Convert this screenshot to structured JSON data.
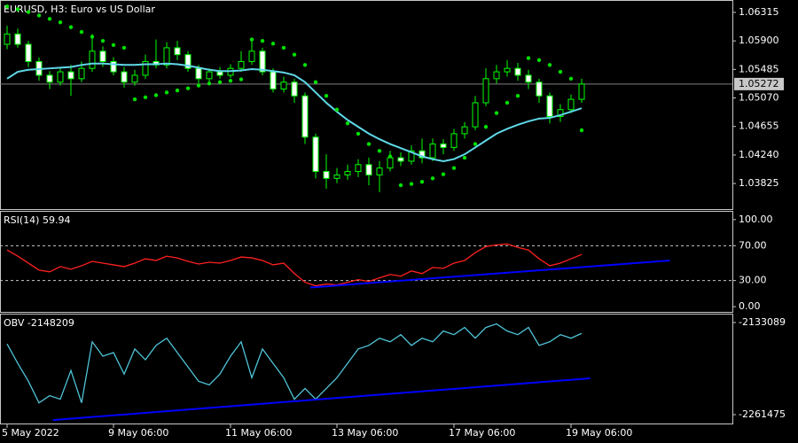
{
  "chart_data": [
    {
      "type": "candlestick",
      "title": "EURUSD, H3:  Euro vs US Dollar",
      "ylim": [
        1.03453,
        1.06482
      ],
      "yticks": [
        1.06315,
        {
          "value": 1.059,
          "label": "1.05900"
        },
        1.05485,
        {
          "value": 1.0507,
          "label": "1.05070"
        },
        1.04655,
        {
          "value": 1.0424,
          "label": "1.04240"
        },
        1.03825
      ],
      "up_color": "#000000",
      "down_color": "#ffffff",
      "wick_color": "#00ff00",
      "last_price_marker": true,
      "open": [
        1.0585,
        1.06,
        1.0585,
        1.056,
        1.054,
        1.053,
        1.0545,
        1.0535,
        1.055,
        1.0575,
        1.056,
        1.0545,
        1.053,
        1.054,
        1.056,
        1.0555,
        1.058,
        1.057,
        1.055,
        1.0535,
        1.0545,
        1.054,
        1.055,
        1.056,
        1.0575,
        1.0545,
        1.052,
        1.053,
        1.051,
        1.045,
        1.04,
        1.039,
        1.0395,
        1.04,
        1.041,
        1.0395,
        1.0405,
        1.042,
        1.0415,
        1.043,
        1.042,
        1.044,
        1.0435,
        1.0455,
        1.0465,
        1.05,
        1.0535,
        1.0545,
        1.055,
        1.054,
        1.053,
        1.051,
        1.048,
        1.049,
        1.0505
      ],
      "high": [
        1.0612,
        1.0608,
        1.059,
        1.0566,
        1.0546,
        1.0552,
        1.0555,
        1.056,
        1.06,
        1.0582,
        1.0566,
        1.0552,
        1.0548,
        1.057,
        1.0592,
        1.0588,
        1.059,
        1.0575,
        1.0555,
        1.055,
        1.0552,
        1.0556,
        1.0575,
        1.059,
        1.058,
        1.055,
        1.0538,
        1.0535,
        1.0515,
        1.0455,
        1.0425,
        1.0405,
        1.041,
        1.0418,
        1.042,
        1.0415,
        1.043,
        1.0428,
        1.0438,
        1.0448,
        1.0448,
        1.0447,
        1.0462,
        1.0472,
        1.051,
        1.055,
        1.0555,
        1.0562,
        1.0558,
        1.0548,
        1.0535,
        1.0515,
        1.0498,
        1.0512,
        1.0535
      ],
      "low": [
        1.0578,
        1.058,
        1.0552,
        1.0532,
        1.052,
        1.0525,
        1.051,
        1.053,
        1.0545,
        1.0552,
        1.054,
        1.0522,
        1.0525,
        1.0535,
        1.055,
        1.055,
        1.0562,
        1.0545,
        1.0528,
        1.053,
        1.0535,
        1.0536,
        1.0545,
        1.0555,
        1.054,
        1.0515,
        1.0515,
        1.05,
        1.044,
        1.039,
        1.0375,
        1.0383,
        1.0388,
        1.0392,
        1.038,
        1.037,
        1.04,
        1.0408,
        1.041,
        1.0412,
        1.0415,
        1.0425,
        1.043,
        1.0448,
        1.046,
        1.0495,
        1.0528,
        1.0538,
        1.0532,
        1.052,
        1.05,
        1.047,
        1.0472,
        1.0485,
        1.05
      ],
      "close": [
        1.06,
        1.0585,
        1.056,
        1.054,
        1.053,
        1.0545,
        1.0535,
        1.055,
        1.0575,
        1.056,
        1.0545,
        1.053,
        1.054,
        1.056,
        1.0555,
        1.058,
        1.057,
        1.055,
        1.0535,
        1.0545,
        1.054,
        1.055,
        1.056,
        1.0575,
        1.0545,
        1.052,
        1.053,
        1.051,
        1.045,
        1.04,
        1.039,
        1.0395,
        1.04,
        1.041,
        1.0395,
        1.0405,
        1.042,
        1.0415,
        1.043,
        1.042,
        1.044,
        1.0435,
        1.0455,
        1.0465,
        1.05,
        1.0535,
        1.0545,
        1.055,
        1.054,
        1.053,
        1.051,
        1.048,
        1.049,
        1.0505,
        1.05272
      ],
      "series": [
        {
          "style": "line",
          "color": "#5fd8e8",
          "values": [
            1.0535,
            1.0545,
            1.0548,
            1.0549,
            1.055,
            1.0551,
            1.0552,
            1.0555,
            1.0557,
            1.0557,
            1.0556,
            1.0555,
            1.0555,
            1.0556,
            1.0556,
            1.0557,
            1.0556,
            1.0554,
            1.0551,
            1.0548,
            1.0546,
            1.0546,
            1.0547,
            1.0549,
            1.0548,
            1.0546,
            1.0544,
            1.054,
            1.053,
            1.0515,
            1.05,
            1.0487,
            1.0475,
            1.0465,
            1.0455,
            1.0447,
            1.044,
            1.0434,
            1.0428,
            1.0422,
            1.0418,
            1.0415,
            1.0418,
            1.0425,
            1.0435,
            1.0445,
            1.0455,
            1.0462,
            1.0468,
            1.0473,
            1.0477,
            1.0478,
            1.0482,
            1.0487,
            1.0492
          ]
        },
        {
          "style": "dots",
          "color": "#00e000",
          "values": [
            1.064,
            1.0636,
            1.0632,
            1.0627,
            1.0622,
            1.0617,
            1.061,
            1.0603,
            1.0596,
            1.059,
            1.0584,
            1.058,
            1.0505,
            1.0508,
            1.0511,
            1.0515,
            1.0518,
            1.0521,
            1.0525,
            1.0528,
            1.053,
            1.0532,
            1.0534,
            1.0592,
            1.059,
            1.0586,
            1.058,
            1.057,
            1.0555,
            1.053,
            1.051,
            1.049,
            1.047,
            1.0455,
            1.044,
            1.043,
            1.0422,
            1.038,
            1.0382,
            1.0385,
            1.039,
            1.0396,
            1.0405,
            1.042,
            1.044,
            1.0465,
            1.0485,
            1.05,
            1.051,
            1.0565,
            1.0562,
            1.0555,
            1.0545,
            1.0535,
            1.046
          ]
        }
      ]
    },
    {
      "type": "line",
      "title": "RSI(14) 59.94",
      "ylim": [
        -6,
        109
      ],
      "yticks": [
        {
          "value": 100,
          "label": "100.00"
        },
        {
          "value": 70,
          "label": "70.00"
        },
        {
          "value": 30,
          "label": "30.00"
        },
        {
          "value": 0,
          "label": "0.00"
        }
      ],
      "levels": [
        70,
        30
      ],
      "series": [
        {
          "style": "line",
          "color": "#ff2020",
          "values": [
            65,
            58,
            50,
            42,
            40,
            46,
            43,
            47,
            52,
            50,
            48,
            46,
            50,
            55,
            53,
            58,
            56,
            52,
            49,
            51,
            50,
            53,
            57,
            56,
            53,
            48,
            50,
            38,
            28,
            24,
            26,
            25,
            28,
            31,
            29,
            33,
            37,
            35,
            41,
            38,
            45,
            44,
            50,
            53,
            62,
            69,
            71,
            72,
            68,
            65,
            55,
            47,
            50,
            55,
            59.94
          ]
        }
      ],
      "trendlines": [
        {
          "color": "#0000ff",
          "x": [
            28.5,
            62.3
          ],
          "y": [
            22,
            53
          ]
        }
      ]
    },
    {
      "type": "line",
      "title": "OBV -2148209",
      "ylim": [
        -2273820,
        -2121980
      ],
      "yticks": [
        -2133089,
        -2261475
      ],
      "series": [
        {
          "style": "line",
          "color": "#4fc4d8",
          "values": [
            -2163000,
            -2190000,
            -2215000,
            -2245000,
            -2235000,
            -2240000,
            -2200000,
            -2245000,
            -2160000,
            -2180000,
            -2175000,
            -2205000,
            -2170000,
            -2185000,
            -2165000,
            -2155000,
            -2175000,
            -2195000,
            -2215000,
            -2220000,
            -2205000,
            -2180000,
            -2160000,
            -2210000,
            -2170000,
            -2190000,
            -2210000,
            -2240000,
            -2225000,
            -2240000,
            -2225000,
            -2210000,
            -2190000,
            -2170000,
            -2165000,
            -2155000,
            -2160000,
            -2150000,
            -2165000,
            -2155000,
            -2160000,
            -2145000,
            -2150000,
            -2140000,
            -2155000,
            -2140000,
            -2135000,
            -2145000,
            -2150000,
            -2140000,
            -2165000,
            -2160000,
            -2150000,
            -2155000,
            -2148209
          ]
        }
      ],
      "trendlines": [
        {
          "color": "#0000ff",
          "x": [
            4.3,
            54.8
          ],
          "y": [
            -2269000,
            -2210860
          ]
        }
      ],
      "categories": [
        "5 May 2022",
        null,
        null,
        null,
        null,
        null,
        null,
        null,
        null,
        null,
        "9 May 06:00",
        null,
        null,
        null,
        null,
        null,
        null,
        null,
        null,
        null,
        null,
        "11 May 06:00",
        null,
        null,
        null,
        null,
        null,
        null,
        null,
        null,
        null,
        "13 May 06:00",
        null,
        null,
        null,
        null,
        null,
        null,
        null,
        null,
        null,
        null,
        "17 May 06:00",
        null,
        null,
        null,
        null,
        null,
        null,
        null,
        null,
        null,
        null,
        "19 May 06:00",
        null
      ]
    }
  ]
}
